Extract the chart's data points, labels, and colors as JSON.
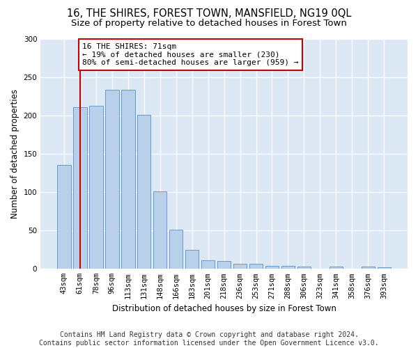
{
  "title": "16, THE SHIRES, FOREST TOWN, MANSFIELD, NG19 0QL",
  "subtitle": "Size of property relative to detached houses in Forest Town",
  "xlabel": "Distribution of detached houses by size in Forest Town",
  "ylabel": "Number of detached properties",
  "categories": [
    "43sqm",
    "61sqm",
    "78sqm",
    "96sqm",
    "113sqm",
    "131sqm",
    "148sqm",
    "166sqm",
    "183sqm",
    "201sqm",
    "218sqm",
    "236sqm",
    "253sqm",
    "271sqm",
    "288sqm",
    "306sqm",
    "323sqm",
    "341sqm",
    "358sqm",
    "376sqm",
    "393sqm"
  ],
  "values": [
    136,
    211,
    213,
    234,
    234,
    201,
    101,
    51,
    25,
    11,
    10,
    7,
    7,
    4,
    4,
    3,
    0,
    3,
    0,
    3,
    2
  ],
  "bar_color": "#b8d0ea",
  "bar_edge_color": "#6699cc",
  "vline_x": 1.0,
  "vline_color": "#cc0000",
  "annotation_text": "16 THE SHIRES: 71sqm\n← 19% of detached houses are smaller (230)\n80% of semi-detached houses are larger (959) →",
  "annotation_box_color": "#ffffff",
  "annotation_box_edge": "#cc0000",
  "ylim": [
    0,
    300
  ],
  "yticks": [
    0,
    50,
    100,
    150,
    200,
    250,
    300
  ],
  "plot_bg_color": "#dde8f5",
  "fig_bg_color": "#ffffff",
  "footer1": "Contains HM Land Registry data © Crown copyright and database right 2024.",
  "footer2": "Contains public sector information licensed under the Open Government Licence v3.0.",
  "title_fontsize": 10.5,
  "subtitle_fontsize": 9.5,
  "axis_label_fontsize": 8.5,
  "tick_fontsize": 7.5,
  "annotation_fontsize": 8,
  "footer_fontsize": 7
}
